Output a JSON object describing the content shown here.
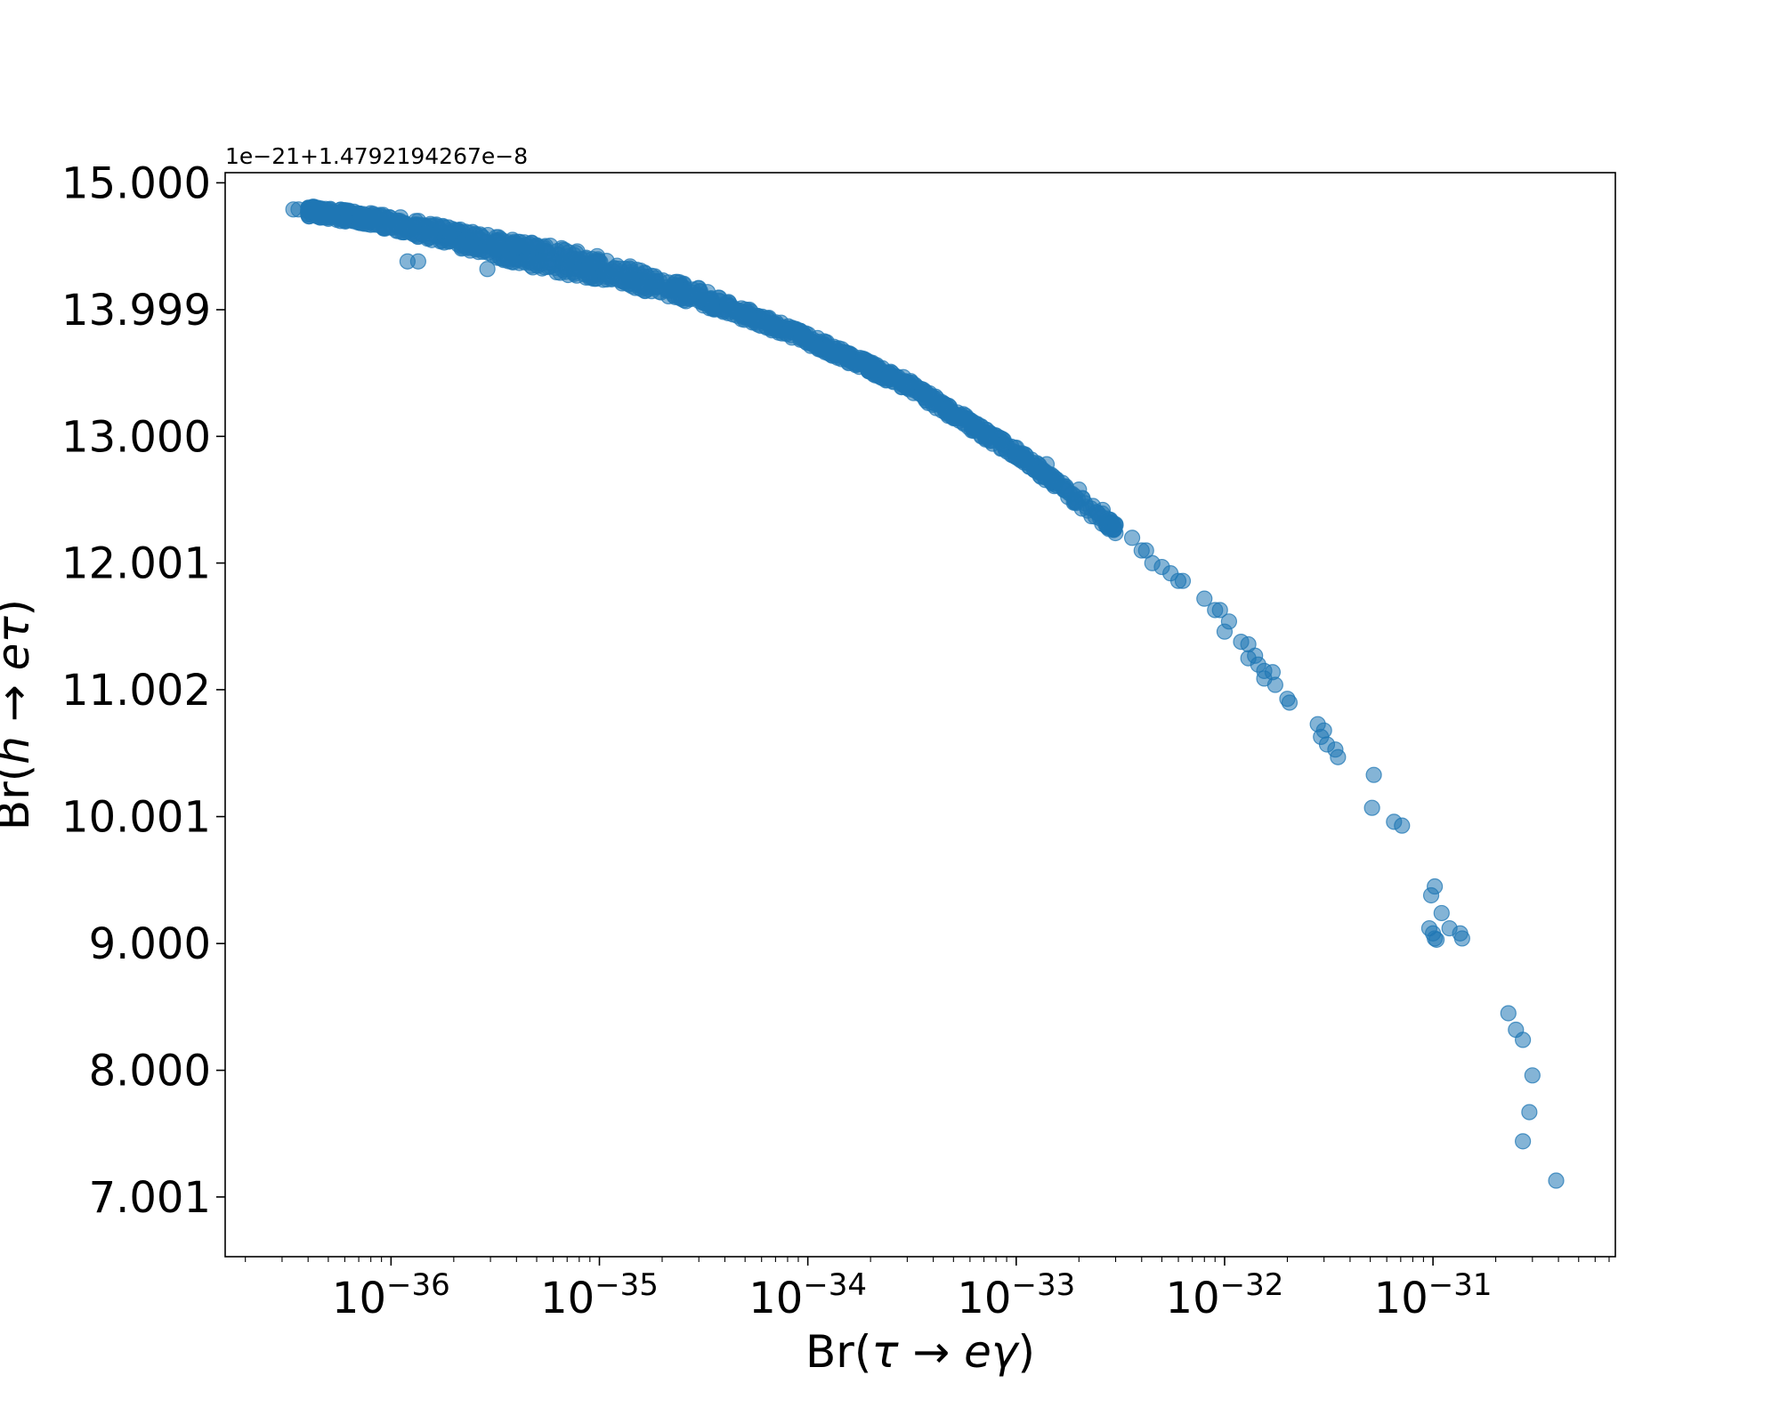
{
  "chart_data": {
    "type": "scatter",
    "title": "",
    "offset_text": "1e−21+1.4792194267e−8",
    "xlabel": {
      "prefix": "Br(",
      "math": "τ → eγ",
      "suffix": ")"
    },
    "ylabel": {
      "prefix": "Br(",
      "math": "h → eτ",
      "suffix": ")"
    },
    "xscale": "log",
    "xlim": [
      1.6e-37,
      7.5e-31
    ],
    "ylim": [
      6.53,
      15.08
    ],
    "x_ticks": [
      {
        "value": 1e-36,
        "base": "10",
        "exp": "−36"
      },
      {
        "value": 1e-35,
        "base": "10",
        "exp": "−35"
      },
      {
        "value": 1e-34,
        "base": "10",
        "exp": "−34"
      },
      {
        "value": 1e-33,
        "base": "10",
        "exp": "−33"
      },
      {
        "value": 1e-32,
        "base": "10",
        "exp": "−32"
      },
      {
        "value": 1e-31,
        "base": "10",
        "exp": "−31"
      }
    ],
    "y_ticks": [
      {
        "value": 15.0,
        "label": "15.000"
      },
      {
        "value": 13.999,
        "label": "13.999"
      },
      {
        "value": 13.0,
        "label": "13.000"
      },
      {
        "value": 12.001,
        "label": "12.001"
      },
      {
        "value": 11.002,
        "label": "11.002"
      },
      {
        "value": 10.001,
        "label": "10.001"
      },
      {
        "value": 9.0,
        "label": "9.000"
      },
      {
        "value": 8.0,
        "label": "8.000"
      },
      {
        "value": 7.001,
        "label": "7.001"
      }
    ],
    "grid": false,
    "marker_color": "#1f77b4",
    "marker_alpha": 0.55,
    "dense_band": {
      "x_range": [
        4e-37,
        3e-33
      ],
      "curve": [
        [
          4e-37,
          14.79
        ],
        [
          1e-36,
          14.7
        ],
        [
          3e-36,
          14.52
        ],
        [
          1e-35,
          14.35
        ],
        [
          3e-35,
          14.12
        ],
        [
          1e-34,
          13.78
        ],
        [
          3e-34,
          13.42
        ],
        [
          1e-33,
          12.88
        ],
        [
          3e-33,
          12.28
        ]
      ]
    },
    "points": [
      [
        3.4e-37,
        14.79
      ],
      [
        3.6e-37,
        14.79
      ],
      [
        1.2e-36,
        14.38
      ],
      [
        1.35e-36,
        14.38
      ],
      [
        2.9e-36,
        14.32
      ],
      [
        1.4e-33,
        12.78
      ],
      [
        2e-33,
        12.58
      ],
      [
        2.6e-33,
        12.42
      ],
      [
        3e-33,
        12.3
      ],
      [
        3.6e-33,
        12.2
      ],
      [
        4e-33,
        12.1
      ],
      [
        4.2e-33,
        12.1
      ],
      [
        4.5e-33,
        12.0
      ],
      [
        5e-33,
        11.97
      ],
      [
        5.5e-33,
        11.92
      ],
      [
        6e-33,
        11.86
      ],
      [
        6.3e-33,
        11.86
      ],
      [
        8e-33,
        11.72
      ],
      [
        9e-33,
        11.63
      ],
      [
        9.5e-33,
        11.63
      ],
      [
        1e-32,
        11.46
      ],
      [
        1.05e-32,
        11.54
      ],
      [
        1.2e-32,
        11.38
      ],
      [
        1.3e-32,
        11.36
      ],
      [
        1.3e-32,
        11.25
      ],
      [
        1.4e-32,
        11.27
      ],
      [
        1.45e-32,
        11.2
      ],
      [
        1.55e-32,
        11.15
      ],
      [
        1.55e-32,
        11.09
      ],
      [
        1.7e-32,
        11.14
      ],
      [
        1.75e-32,
        11.04
      ],
      [
        2e-32,
        10.93
      ],
      [
        2.05e-32,
        10.9
      ],
      [
        2.8e-32,
        10.73
      ],
      [
        2.9e-32,
        10.63
      ],
      [
        3e-32,
        10.68
      ],
      [
        3.1e-32,
        10.57
      ],
      [
        3.4e-32,
        10.53
      ],
      [
        3.5e-32,
        10.47
      ],
      [
        5.2e-32,
        10.33
      ],
      [
        5.1e-32,
        10.07
      ],
      [
        6.5e-32,
        9.96
      ],
      [
        7.1e-32,
        9.93
      ],
      [
        1.02e-31,
        9.45
      ],
      [
        9.8e-32,
        9.38
      ],
      [
        1.1e-31,
        9.24
      ],
      [
        1.2e-31,
        9.12
      ],
      [
        1.35e-31,
        9.08
      ],
      [
        1.38e-31,
        9.04
      ],
      [
        9.6e-32,
        9.12
      ],
      [
        1e-31,
        9.08
      ],
      [
        1.02e-31,
        9.04
      ],
      [
        1.04e-31,
        9.03
      ],
      [
        2.3e-31,
        8.45
      ],
      [
        2.5e-31,
        8.32
      ],
      [
        2.7e-31,
        8.24
      ],
      [
        3e-31,
        7.96
      ],
      [
        2.9e-31,
        7.67
      ],
      [
        2.7e-31,
        7.44
      ],
      [
        3.9e-31,
        7.13
      ]
    ]
  }
}
